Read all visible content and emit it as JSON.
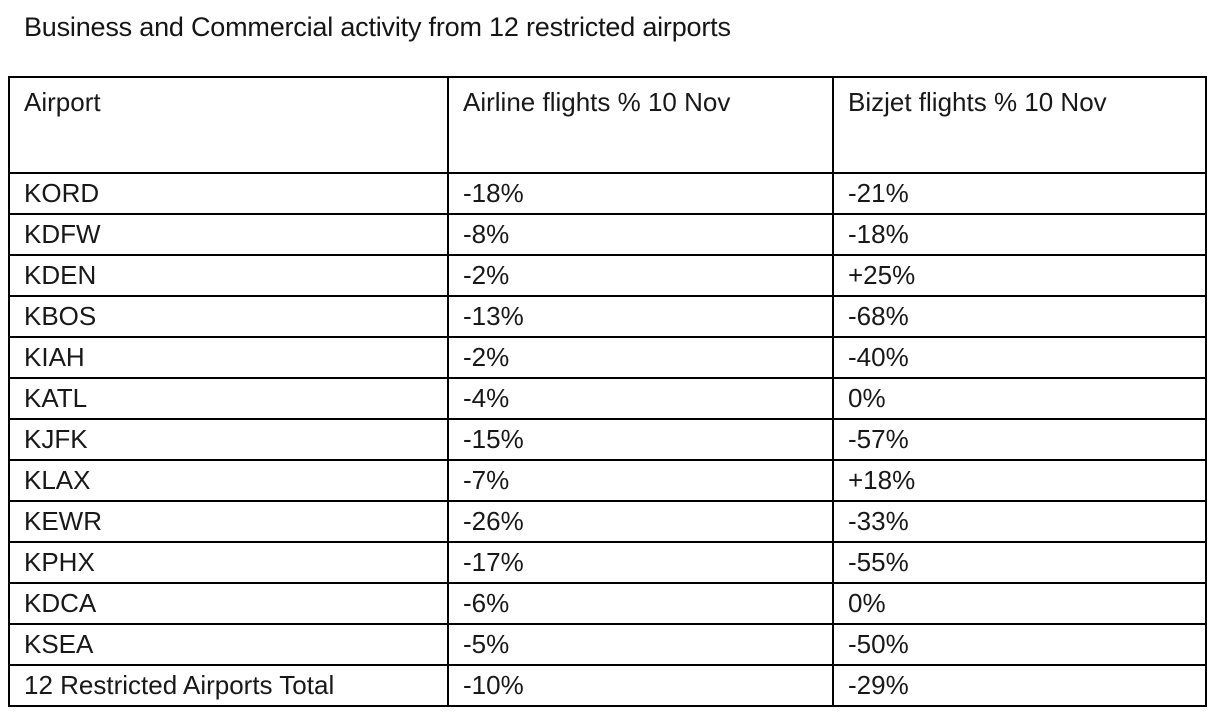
{
  "title": "Business and Commercial activity from 12 restricted airports",
  "table": {
    "columns": [
      "Airport",
      "Airline flights % 10 Nov",
      "Bizjet flights % 10 Nov"
    ],
    "rows": [
      [
        "KORD",
        "-18%",
        "-21%"
      ],
      [
        "KDFW",
        "-8%",
        "-18%"
      ],
      [
        "KDEN",
        "-2%",
        "+25%"
      ],
      [
        "KBOS",
        "-13%",
        "-68%"
      ],
      [
        "KIAH",
        "-2%",
        "-40%"
      ],
      [
        "KATL",
        "-4%",
        "0%"
      ],
      [
        "KJFK",
        "-15%",
        "-57%"
      ],
      [
        "KLAX",
        "-7%",
        "+18%"
      ],
      [
        "KEWR",
        "-26%",
        "-33%"
      ],
      [
        "KPHX",
        "-17%",
        "-55%"
      ],
      [
        "KDCA",
        "-6%",
        "0%"
      ],
      [
        "KSEA",
        "-5%",
        "-50%"
      ],
      [
        "12 Restricted Airports Total",
        "-10%",
        "-29%"
      ]
    ]
  },
  "colors": {
    "text": "#181818",
    "border": "#000000",
    "background": "#ffffff"
  },
  "chart_data": {
    "type": "table",
    "title": "Business and Commercial activity from 12 restricted airports",
    "columns": [
      "Airport",
      "Airline flights % 10 Nov",
      "Bizjet flights % 10 Nov"
    ],
    "categories": [
      "KORD",
      "KDFW",
      "KDEN",
      "KBOS",
      "KIAH",
      "KATL",
      "KJFK",
      "KLAX",
      "KEWR",
      "KPHX",
      "KDCA",
      "KSEA",
      "12 Restricted Airports Total"
    ],
    "series": [
      {
        "name": "Airline flights % 10 Nov",
        "unit": "%",
        "values": [
          -18,
          -8,
          -2,
          -13,
          -2,
          -4,
          -15,
          -7,
          -26,
          -17,
          -6,
          -5,
          -10
        ]
      },
      {
        "name": "Bizjet flights % 10 Nov",
        "unit": "%",
        "values": [
          -21,
          -18,
          25,
          -68,
          -40,
          0,
          -57,
          18,
          -33,
          -55,
          0,
          -50,
          -29
        ]
      }
    ]
  }
}
